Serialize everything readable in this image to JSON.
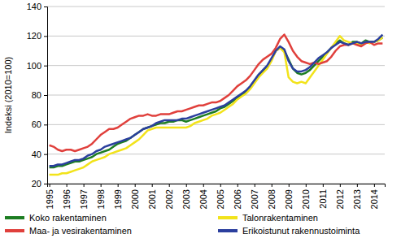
{
  "chart_data": {
    "type": "line",
    "y_label": "Indeksi (2010=100)",
    "categories": [
      "1995",
      null,
      null,
      null,
      "1996",
      null,
      null,
      null,
      "1997",
      null,
      null,
      null,
      "1998",
      null,
      null,
      null,
      "1999",
      null,
      null,
      null,
      "2000",
      null,
      null,
      null,
      "2001",
      null,
      null,
      null,
      "2002",
      null,
      null,
      null,
      "2003",
      null,
      null,
      null,
      "2004",
      null,
      null,
      null,
      "2005",
      null,
      null,
      null,
      "2006",
      null,
      null,
      null,
      "2007",
      null,
      null,
      null,
      "2008",
      null,
      null,
      null,
      "2009",
      null,
      null,
      null,
      "2010",
      null,
      null,
      null,
      "2011",
      null,
      null,
      null,
      "2012",
      null,
      null,
      null,
      "2013",
      null,
      null,
      null,
      "2014",
      null,
      null
    ],
    "series": [
      {
        "name": "Koko rakentaminen",
        "color": "#1d7d22",
        "values": [
          31,
          31,
          32,
          32,
          33,
          34,
          35,
          35,
          36,
          37,
          38,
          40,
          41,
          42,
          43,
          45,
          47,
          48,
          49,
          51,
          53,
          55,
          57,
          58,
          59,
          60,
          61,
          61,
          62,
          62,
          63,
          63,
          62,
          63,
          64,
          65,
          66,
          67,
          68,
          69,
          71,
          72,
          74,
          76,
          78,
          80,
          82,
          85,
          89,
          93,
          96,
          99,
          104,
          110,
          112,
          110,
          104,
          98,
          95,
          94,
          95,
          97,
          100,
          103,
          106,
          109,
          112,
          115,
          117,
          115,
          114,
          116,
          116,
          115,
          117,
          116,
          116,
          117,
          119
        ]
      },
      {
        "name": "Talonrakentaminen",
        "color": "#f2e31b",
        "values": [
          26,
          26,
          26,
          27,
          27,
          28,
          29,
          30,
          31,
          33,
          35,
          36,
          37,
          38,
          40,
          41,
          42,
          43,
          44,
          46,
          48,
          50,
          53,
          56,
          57,
          58,
          58,
          58,
          58,
          58,
          58,
          58,
          58,
          59,
          61,
          62,
          63,
          64,
          66,
          67,
          68,
          70,
          72,
          74,
          77,
          79,
          81,
          84,
          88,
          92,
          95,
          98,
          103,
          110,
          112,
          109,
          92,
          89,
          88,
          89,
          88,
          92,
          96,
          100,
          104,
          108,
          112,
          116,
          120,
          117,
          116,
          115,
          115,
          114,
          116,
          115,
          116,
          117,
          119
        ]
      },
      {
        "name": "Maa- ja vesirakentaminen",
        "color": "#e0403c",
        "values": [
          46,
          45,
          43,
          42,
          43,
          43,
          42,
          43,
          44,
          45,
          47,
          50,
          53,
          55,
          57,
          57,
          58,
          60,
          62,
          64,
          65,
          66,
          66,
          67,
          66,
          66,
          67,
          67,
          67,
          68,
          69,
          69,
          70,
          71,
          72,
          73,
          73,
          74,
          75,
          75,
          76,
          78,
          80,
          83,
          86,
          88,
          90,
          93,
          97,
          101,
          104,
          106,
          108,
          112,
          118,
          121,
          116,
          110,
          106,
          103,
          102,
          101,
          102,
          101,
          102,
          103,
          106,
          110,
          113,
          114,
          114,
          115,
          114,
          113,
          115,
          116,
          114,
          115,
          115
        ]
      },
      {
        "name": "Erikoistunut rakennustoiminta",
        "color": "#2b3f9e",
        "values": [
          32,
          32,
          33,
          33,
          34,
          35,
          36,
          36,
          37,
          39,
          40,
          42,
          43,
          45,
          46,
          47,
          48,
          49,
          50,
          51,
          53,
          55,
          57,
          58,
          59,
          61,
          62,
          63,
          63,
          63,
          63,
          64,
          64,
          65,
          66,
          67,
          68,
          69,
          70,
          71,
          72,
          73,
          75,
          77,
          79,
          81,
          83,
          86,
          90,
          94,
          97,
          100,
          105,
          110,
          113,
          111,
          103,
          98,
          96,
          96,
          97,
          99,
          102,
          105,
          107,
          109,
          112,
          114,
          116,
          115,
          114,
          115,
          116,
          115,
          116,
          116,
          116,
          118,
          121
        ]
      }
    ],
    "ylim": [
      20,
      140
    ],
    "yticks": [
      20,
      40,
      60,
      80,
      100,
      120,
      140
    ],
    "grid": true,
    "legend": "bottom"
  }
}
